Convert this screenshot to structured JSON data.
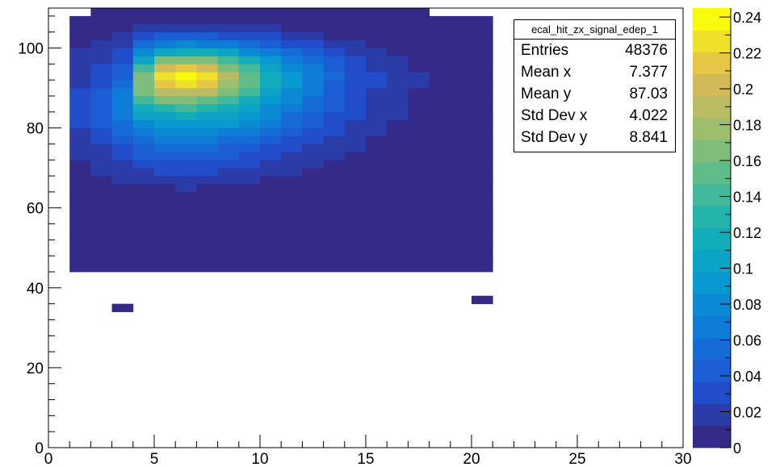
{
  "chart_data": {
    "type": "heatmap",
    "title": "",
    "xlabel": "",
    "ylabel": "",
    "xlim": [
      0,
      30
    ],
    "ylim": [
      0,
      110
    ],
    "zlim": [
      0,
      0.245
    ],
    "x_ticks": [
      "0",
      "5",
      "10",
      "15",
      "20",
      "25",
      "30"
    ],
    "y_ticks": [
      "0",
      "20",
      "40",
      "60",
      "80",
      "100"
    ],
    "z_ticks": [
      "0",
      "0.02",
      "0.04",
      "0.06",
      "0.08",
      "0.1",
      "0.12",
      "0.14",
      "0.16",
      "0.18",
      "0.2",
      "0.22",
      "0.24"
    ],
    "x_bin_width": 1,
    "y_bin_width": 2,
    "x_bin_starts": [
      0,
      1,
      2,
      3,
      4,
      5,
      6,
      7,
      8,
      9,
      10,
      11,
      12,
      13,
      14,
      15,
      16,
      17,
      18,
      19,
      20
    ],
    "y_bin_starts": [
      34,
      36,
      40,
      42,
      44,
      46,
      48,
      50,
      52,
      54,
      56,
      58,
      60,
      62,
      64,
      66,
      68,
      70,
      72,
      74,
      76,
      78,
      80,
      82,
      84,
      86,
      88,
      90,
      92,
      94,
      96,
      98,
      100,
      102,
      104,
      106,
      108
    ],
    "z_values": [
      [
        0,
        0,
        0,
        0,
        0,
        0,
        0,
        0,
        0,
        0,
        0,
        0,
        0,
        0,
        0,
        0,
        0,
        0,
        0,
        0,
        0,
        0,
        0,
        0,
        0,
        0,
        0,
        0,
        0,
        0,
        0,
        0,
        0,
        0,
        0,
        0,
        0
      ],
      [
        0,
        0,
        0,
        0,
        0.002,
        0.003,
        0.002,
        0.003,
        0.004,
        0.003,
        0.002,
        0.005,
        0.004,
        0.002,
        0.006,
        0.008,
        0.01,
        0.012,
        0.014,
        0.016,
        0.02,
        0.022,
        0.028,
        0.03,
        0.032,
        0.03,
        0.028,
        0.024,
        0.02,
        0.018,
        0.016,
        0.014,
        0.012,
        0.01,
        0.006,
        0.004,
        0
      ],
      [
        0,
        0,
        0,
        0,
        0.003,
        0.004,
        0.003,
        0.004,
        0.005,
        0.004,
        0.003,
        0.006,
        0.005,
        0.003,
        0.008,
        0.01,
        0.014,
        0.016,
        0.02,
        0.024,
        0.03,
        0.034,
        0.04,
        0.044,
        0.048,
        0.046,
        0.042,
        0.036,
        0.03,
        0.026,
        0.022,
        0.018,
        0.016,
        0.012,
        0.008,
        0.005,
        0.003
      ],
      [
        0.003,
        0,
        0,
        0,
        0.004,
        0.005,
        0.004,
        0.005,
        0.006,
        0.005,
        0.004,
        0.007,
        0.006,
        0.004,
        0.01,
        0.014,
        0.02,
        0.024,
        0.03,
        0.036,
        0.044,
        0.05,
        0.06,
        0.066,
        0.07,
        0.068,
        0.062,
        0.054,
        0.046,
        0.04,
        0.034,
        0.028,
        0.022,
        0.016,
        0.01,
        0.006,
        0.003
      ],
      [
        0,
        0,
        0,
        0,
        0.005,
        0.006,
        0.005,
        0.006,
        0.008,
        0.006,
        0.005,
        0.008,
        0.007,
        0.005,
        0.012,
        0.016,
        0.024,
        0.03,
        0.038,
        0.046,
        0.056,
        0.066,
        0.08,
        0.1,
        0.12,
        0.14,
        0.16,
        0.17,
        0.165,
        0.14,
        0.11,
        0.08,
        0.05,
        0.03,
        0.016,
        0.008,
        0.004
      ],
      [
        0,
        0,
        0,
        0,
        0.005,
        0.006,
        0.006,
        0.007,
        0.008,
        0.007,
        0.006,
        0.009,
        0.008,
        0.006,
        0.012,
        0.018,
        0.026,
        0.034,
        0.042,
        0.052,
        0.064,
        0.076,
        0.092,
        0.11,
        0.13,
        0.16,
        0.19,
        0.215,
        0.23,
        0.2,
        0.16,
        0.11,
        0.07,
        0.04,
        0.02,
        0.01,
        0.004
      ],
      [
        0,
        0,
        0,
        0,
        0.005,
        0.007,
        0.006,
        0.007,
        0.009,
        0.007,
        0.006,
        0.009,
        0.008,
        0.006,
        0.013,
        0.018,
        0.026,
        0.034,
        0.044,
        0.054,
        0.066,
        0.08,
        0.096,
        0.115,
        0.135,
        0.165,
        0.195,
        0.225,
        0.245,
        0.215,
        0.17,
        0.12,
        0.075,
        0.042,
        0.022,
        0.01,
        0.004
      ],
      [
        0,
        0,
        0,
        0,
        0.005,
        0.006,
        0.006,
        0.007,
        0.008,
        0.007,
        0.006,
        0.009,
        0.008,
        0.006,
        0.012,
        0.017,
        0.025,
        0.033,
        0.042,
        0.052,
        0.064,
        0.078,
        0.094,
        0.11,
        0.13,
        0.158,
        0.185,
        0.21,
        0.225,
        0.2,
        0.16,
        0.115,
        0.07,
        0.04,
        0.02,
        0.01,
        0.004
      ],
      [
        0,
        0,
        0,
        0,
        0.005,
        0.006,
        0.005,
        0.006,
        0.008,
        0.006,
        0.005,
        0.008,
        0.007,
        0.005,
        0.011,
        0.016,
        0.023,
        0.03,
        0.038,
        0.048,
        0.06,
        0.072,
        0.086,
        0.1,
        0.118,
        0.14,
        0.16,
        0.18,
        0.19,
        0.17,
        0.14,
        0.1,
        0.062,
        0.036,
        0.018,
        0.008,
        0.004
      ],
      [
        0,
        0,
        0,
        0,
        0.004,
        0.005,
        0.005,
        0.006,
        0.007,
        0.006,
        0.005,
        0.007,
        0.006,
        0.005,
        0.01,
        0.014,
        0.02,
        0.026,
        0.034,
        0.042,
        0.052,
        0.064,
        0.076,
        0.088,
        0.1,
        0.118,
        0.135,
        0.15,
        0.155,
        0.14,
        0.115,
        0.085,
        0.055,
        0.032,
        0.016,
        0.008,
        0.003
      ],
      [
        0,
        0,
        0,
        0,
        0.004,
        0.005,
        0.004,
        0.005,
        0.006,
        0.005,
        0.004,
        0.006,
        0.005,
        0.004,
        0.009,
        0.012,
        0.017,
        0.022,
        0.028,
        0.035,
        0.044,
        0.054,
        0.064,
        0.074,
        0.084,
        0.096,
        0.108,
        0.118,
        0.122,
        0.11,
        0.09,
        0.068,
        0.045,
        0.026,
        0.013,
        0.006,
        0.003
      ],
      [
        0,
        0,
        0,
        0,
        0.003,
        0.004,
        0.004,
        0.004,
        0.005,
        0.004,
        0.004,
        0.005,
        0.004,
        0.003,
        0.007,
        0.01,
        0.014,
        0.018,
        0.023,
        0.029,
        0.036,
        0.044,
        0.052,
        0.06,
        0.068,
        0.076,
        0.084,
        0.09,
        0.092,
        0.084,
        0.07,
        0.053,
        0.036,
        0.021,
        0.01,
        0.005,
        0.002
      ],
      [
        0,
        0,
        0,
        0,
        0.003,
        0.003,
        0.003,
        0.004,
        0.004,
        0.003,
        0.003,
        0.004,
        0.004,
        0.003,
        0.006,
        0.008,
        0.011,
        0.014,
        0.018,
        0.023,
        0.028,
        0.034,
        0.04,
        0.046,
        0.052,
        0.058,
        0.063,
        0.067,
        0.068,
        0.062,
        0.052,
        0.04,
        0.027,
        0.016,
        0.008,
        0.004,
        0.002
      ],
      [
        0,
        0,
        0,
        0,
        0.002,
        0.003,
        0.002,
        0.003,
        0.003,
        0.003,
        0.002,
        0.003,
        0.003,
        0.002,
        0.004,
        0.006,
        0.008,
        0.011,
        0.014,
        0.017,
        0.021,
        0.026,
        0.03,
        0.034,
        0.038,
        0.042,
        0.046,
        0.048,
        0.049,
        0.045,
        0.038,
        0.029,
        0.02,
        0.012,
        0.006,
        0.003,
        0.001
      ],
      [
        0,
        0,
        0,
        0,
        0.002,
        0.002,
        0.002,
        0.002,
        0.003,
        0.002,
        0.002,
        0.003,
        0.002,
        0.002,
        0.003,
        0.005,
        0.006,
        0.008,
        0.01,
        0.013,
        0.016,
        0.019,
        0.022,
        0.025,
        0.028,
        0.031,
        0.033,
        0.035,
        0.035,
        0.032,
        0.027,
        0.021,
        0.014,
        0.009,
        0.005,
        0.002,
        0.001
      ],
      [
        0,
        0,
        0,
        0,
        0.002,
        0.002,
        0.002,
        0.002,
        0.002,
        0.002,
        0.002,
        0.002,
        0.002,
        0.002,
        0.003,
        0.004,
        0.005,
        0.006,
        0.008,
        0.01,
        0.012,
        0.014,
        0.016,
        0.018,
        0.02,
        0.022,
        0.024,
        0.025,
        0.025,
        0.023,
        0.02,
        0.015,
        0.011,
        0.007,
        0.004,
        0.002,
        0.001
      ],
      [
        0,
        0,
        0,
        0,
        0.001,
        0.002,
        0.001,
        0.002,
        0.002,
        0.002,
        0.001,
        0.002,
        0.002,
        0.001,
        0.002,
        0.003,
        0.004,
        0.005,
        0.006,
        0.007,
        0.009,
        0.011,
        0.012,
        0.014,
        0.015,
        0.016,
        0.017,
        0.018,
        0.018,
        0.017,
        0.014,
        0.011,
        0.008,
        0.005,
        0.003,
        0.002,
        0.001
      ],
      [
        0,
        0,
        0,
        0,
        0.001,
        0.001,
        0.001,
        0.001,
        0.002,
        0.001,
        0.001,
        0.001,
        0.001,
        0.001,
        0.002,
        0.002,
        0.003,
        0.004,
        0.005,
        0.006,
        0.007,
        0.008,
        0.009,
        0.01,
        0.011,
        0.012,
        0.012,
        0.013,
        0.013,
        0.012,
        0.01,
        0.008,
        0.006,
        0.004,
        0.002,
        0.001,
        0.001
      ],
      [
        0,
        0,
        0,
        0,
        0.001,
        0.001,
        0.001,
        0.001,
        0.001,
        0.001,
        0.001,
        0.001,
        0.001,
        0.001,
        0.001,
        0.002,
        0.002,
        0.003,
        0.004,
        0.004,
        0.005,
        0.006,
        0.007,
        0.008,
        0.008,
        0.009,
        0.009,
        0.009,
        0.009,
        0.009,
        0.008,
        0.006,
        0.004,
        0.003,
        0.002,
        0.001,
        0
      ],
      [
        0,
        0,
        0,
        0,
        0.001,
        0.001,
        0.001,
        0.001,
        0.001,
        0.001,
        0.001,
        0.001,
        0.001,
        0.001,
        0.001,
        0.001,
        0.002,
        0.002,
        0.003,
        0.003,
        0.004,
        0.004,
        0.005,
        0.005,
        0.006,
        0.006,
        0.006,
        0.007,
        0.007,
        0.006,
        0.005,
        0.004,
        0.003,
        0.002,
        0.001,
        0.001,
        0
      ],
      [
        0,
        0.001,
        0,
        0,
        0.001,
        0.001,
        0.001,
        0.001,
        0.001,
        0.001,
        0.001,
        0.001,
        0.001,
        0.001,
        0.001,
        0.001,
        0.001,
        0.002,
        0.002,
        0.002,
        0.003,
        0.003,
        0.003,
        0.004,
        0.004,
        0.004,
        0.004,
        0.005,
        0.005,
        0.004,
        0.004,
        0.003,
        0.002,
        0.001,
        0.001,
        0.001,
        0
      ]
    ],
    "stats": {
      "name": "ecal_hit_zx_signal_edep_1",
      "entries_label": "Entries",
      "entries": "48376",
      "mean_x_label": "Mean x",
      "mean_x": "7.377",
      "mean_y_label": "Mean y",
      "mean_y": "87.03",
      "std_x_label": "Std Dev x",
      "std_x": "4.022",
      "std_y_label": "Std Dev y",
      "std_y": "8.841"
    },
    "palette": "kBird",
    "background": "#ffffff"
  }
}
